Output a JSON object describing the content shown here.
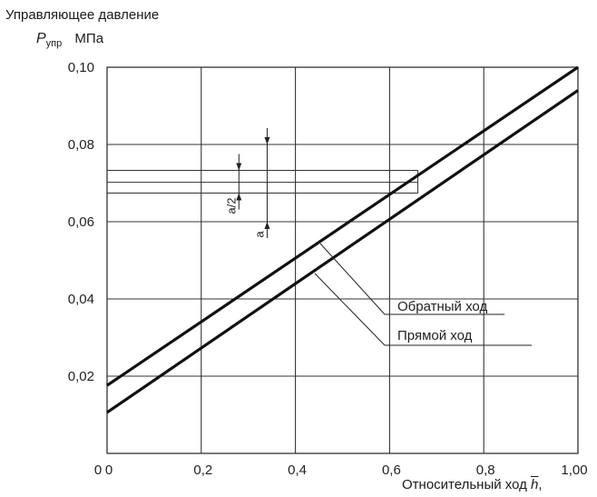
{
  "chart_data": {
    "type": "line",
    "title": "",
    "ylabel": {
      "line1": "Управляющее давление",
      "symbol": "P",
      "subscript": "упр",
      "unit": "МПа"
    },
    "xlabel": {
      "text": "Относительный ход",
      "symbol": "h",
      "suffix": ","
    },
    "xlim": [
      0,
      1.0
    ],
    "ylim": [
      0,
      0.1
    ],
    "x_ticks": [
      {
        "value": 0.0,
        "label": "0"
      },
      {
        "value": 0.2,
        "label": "0,2"
      },
      {
        "value": 0.4,
        "label": "0,4"
      },
      {
        "value": 0.6,
        "label": "0,6"
      },
      {
        "value": 0.8,
        "label": "0,8"
      },
      {
        "value": 1.0,
        "label": "1,00"
      }
    ],
    "origin_extra_label": "0",
    "y_ticks": [
      {
        "value": 0.02,
        "label": "0,02"
      },
      {
        "value": 0.04,
        "label": "0,04"
      },
      {
        "value": 0.06,
        "label": "0,06"
      },
      {
        "value": 0.08,
        "label": "0,08"
      },
      {
        "value": 0.1,
        "label": "0,10"
      }
    ],
    "grid": true,
    "series": [
      {
        "name": "Прямой ход",
        "x": [
          0.0,
          1.0
        ],
        "y": [
          0.0106,
          0.094
        ]
      },
      {
        "name": "Обратный ход",
        "x": [
          0.0,
          1.0
        ],
        "y": [
          0.0176,
          0.1
        ]
      }
    ],
    "band_lines_y": [
      0.0674,
      0.0702,
      0.0733
    ],
    "band_x_range": [
      0.0,
      0.66
    ],
    "annotations": {
      "half_a_label": "a/2",
      "a_label": "a",
      "half_a_range": [
        0.0674,
        0.0733
      ],
      "a_range": [
        0.06,
        0.08
      ],
      "half_a_x": 0.28,
      "a_x": 0.34
    },
    "legend_placement": "inside-bottom-right, leader lines"
  }
}
